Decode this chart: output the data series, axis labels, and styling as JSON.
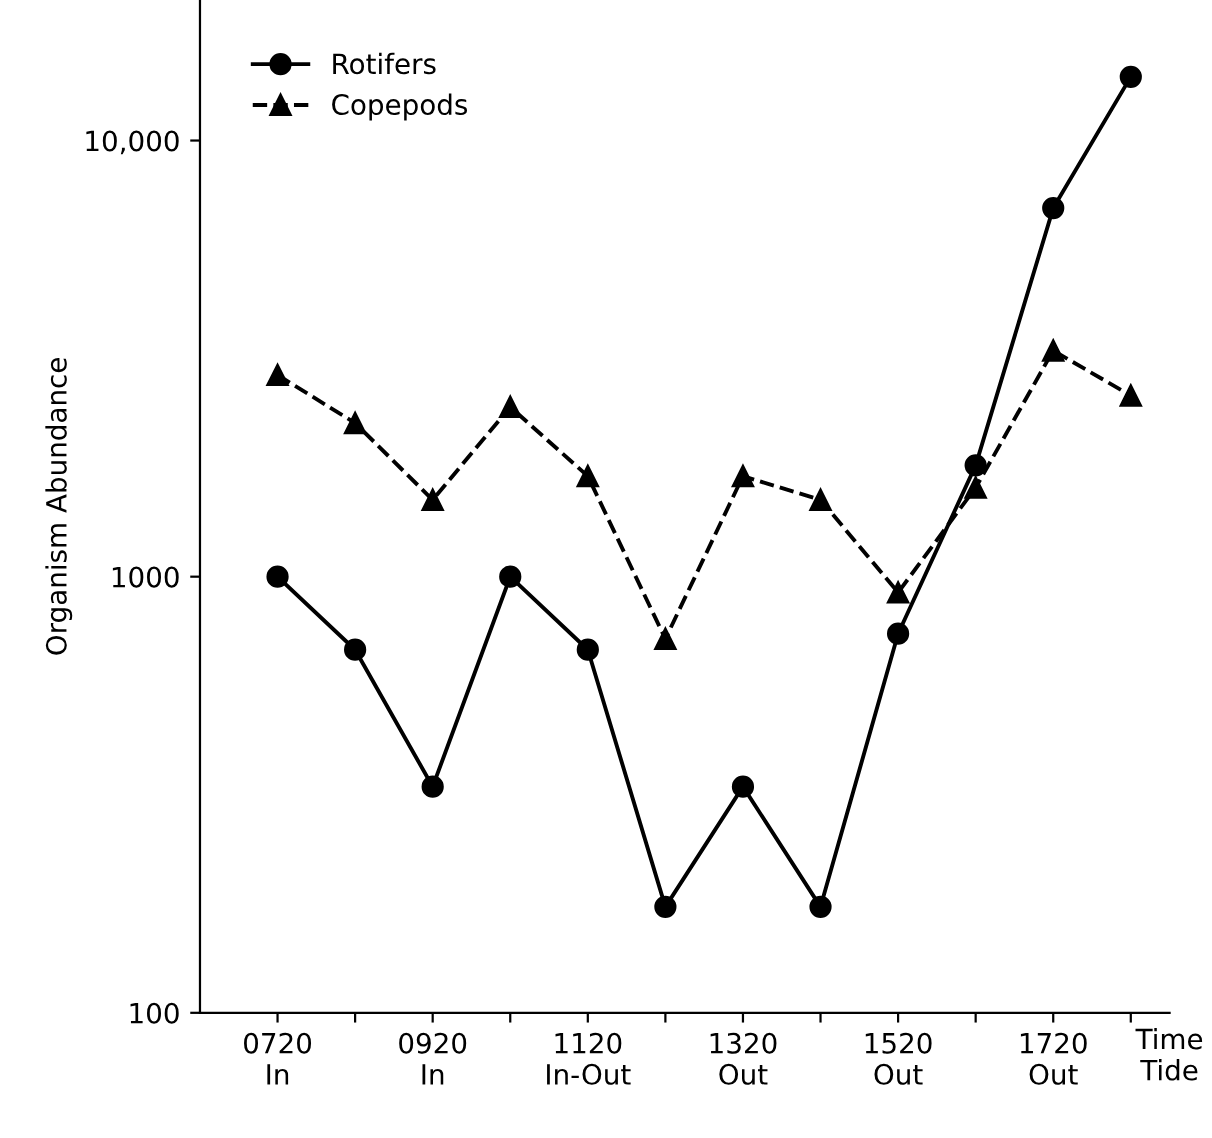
{
  "chart_data": {
    "type": "line",
    "ylabel": "Organism Abundance",
    "xlabel": "Time\nTide",
    "categories": [
      "0720\nIn",
      null,
      "0920\nIn",
      null,
      "1120\nIn-Out",
      null,
      "1320\nOut",
      null,
      "1520\nOut",
      null,
      "1720\nOut",
      null
    ],
    "series": [
      {
        "name": "Rotifers",
        "color": "#000000",
        "marker": "circle",
        "line_style": "solid",
        "values": [
          1000,
          680,
          330,
          1000,
          680,
          175,
          330,
          175,
          740,
          1800,
          7000,
          14000
        ]
      },
      {
        "name": "Copepods",
        "color": "#000000",
        "marker": "triangle",
        "line_style": "dashed",
        "values": [
          2900,
          2250,
          1500,
          2450,
          1700,
          720,
          1700,
          1500,
          920,
          1600,
          3300,
          2600
        ]
      }
    ],
    "log": "y",
    "ylim": [
      100,
      21000
    ],
    "yticks": [
      100,
      {
        "value": 1000,
        "label": "1000"
      },
      {
        "value": 10000,
        "label": "10,000"
      }
    ],
    "grid": false,
    "legend": "top left"
  }
}
